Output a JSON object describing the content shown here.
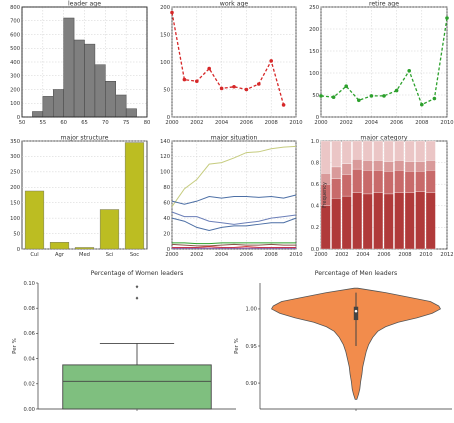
{
  "chart_data": [
    {
      "id": "leader-age",
      "type": "bar",
      "title": "leader age",
      "x_ticks": [
        "50",
        "55",
        "60",
        "65",
        "70",
        "75",
        "80"
      ],
      "y_ticks": [
        "0",
        "100",
        "200",
        "300",
        "400",
        "500",
        "600",
        "700",
        "800"
      ],
      "xlim": [
        50,
        80
      ],
      "ylim": [
        0,
        800
      ],
      "grid": true,
      "bins": [
        [
          52.5,
          55
        ],
        [
          55,
          57.5
        ],
        [
          57.5,
          60
        ],
        [
          60,
          62.5
        ],
        [
          62.5,
          65
        ],
        [
          65,
          67.5
        ],
        [
          67.5,
          70
        ],
        [
          70,
          72.5
        ],
        [
          72.5,
          75
        ],
        [
          75,
          77.5
        ]
      ],
      "values": [
        40,
        150,
        200,
        720,
        560,
        530,
        380,
        260,
        160,
        60
      ],
      "color": "#7f7f7f"
    },
    {
      "id": "work-age",
      "type": "line",
      "title": "work age",
      "x_ticks": [
        "2000",
        "2002",
        "2004",
        "2006",
        "2008",
        "2010"
      ],
      "y_ticks": [
        "0",
        "50",
        "100",
        "150",
        "200"
      ],
      "xlim": [
        2000,
        2010
      ],
      "ylim": [
        0,
        200
      ],
      "grid": true,
      "x": [
        2000,
        2001,
        2002,
        2003,
        2004,
        2005,
        2006,
        2007,
        2008,
        2009
      ],
      "values": [
        190,
        68,
        65,
        88,
        52,
        55,
        50,
        60,
        102,
        22
      ],
      "color": "#d62728"
    },
    {
      "id": "retire-age",
      "type": "line",
      "title": "retire age",
      "x_ticks": [
        "2000",
        "2002",
        "2004",
        "2006",
        "2008",
        "2010"
      ],
      "y_ticks": [
        "0",
        "50",
        "100",
        "150",
        "200",
        "250"
      ],
      "xlim": [
        2000,
        2010
      ],
      "ylim": [
        0,
        250
      ],
      "grid": true,
      "x": [
        2000,
        2001,
        2002,
        2003,
        2004,
        2005,
        2006,
        2007,
        2008,
        2009,
        2010
      ],
      "values": [
        48,
        45,
        70,
        38,
        48,
        48,
        60,
        105,
        28,
        42,
        225
      ],
      "color": "#2ca02c"
    },
    {
      "id": "major-structure",
      "type": "bar",
      "title": "major structure",
      "categories": [
        "Cul",
        "Agr",
        "Med",
        "Sci",
        "Soc"
      ],
      "y_ticks": [
        "0",
        "50",
        "100",
        "150",
        "200",
        "250",
        "300",
        "350"
      ],
      "ylim": [
        0,
        350
      ],
      "grid": true,
      "values": [
        188,
        22,
        5,
        128,
        345
      ],
      "color": "#bcbd22"
    },
    {
      "id": "major-situation",
      "type": "line",
      "title": "major situation",
      "x_ticks": [
        "2000",
        "2002",
        "2004",
        "2006",
        "2008",
        "2010"
      ],
      "y_ticks": [
        "0",
        "20",
        "40",
        "60",
        "80",
        "100",
        "120",
        "140"
      ],
      "xlim": [
        2000,
        2010
      ],
      "ylim": [
        0,
        140
      ],
      "grid": true,
      "x": [
        2000,
        2001,
        2002,
        2003,
        2004,
        2005,
        2006,
        2007,
        2008,
        2009,
        2010
      ],
      "series": [
        {
          "color": "#c6cc7f",
          "values": [
            55,
            78,
            90,
            110,
            112,
            118,
            125,
            126,
            130,
            132,
            133
          ]
        },
        {
          "color": "#4c6fa5",
          "values": [
            62,
            58,
            62,
            68,
            66,
            68,
            68,
            67,
            68,
            66,
            70
          ]
        },
        {
          "color": "#6b7fb8",
          "values": [
            48,
            42,
            42,
            36,
            34,
            32,
            34,
            36,
            40,
            42,
            44
          ]
        },
        {
          "color": "#4c6fa5",
          "values": [
            40,
            36,
            28,
            24,
            28,
            30,
            30,
            32,
            34,
            34,
            40
          ]
        },
        {
          "color": "#8c564b",
          "values": [
            6,
            5,
            4,
            4,
            5,
            6,
            5,
            5,
            6,
            5,
            5
          ]
        },
        {
          "color": "#2ca02c",
          "values": [
            8,
            8,
            7,
            7,
            8,
            8,
            8,
            8,
            8,
            8,
            8
          ]
        },
        {
          "color": "#d62728",
          "values": [
            2,
            2,
            2,
            3,
            2,
            2,
            3,
            2,
            2,
            2,
            2
          ]
        },
        {
          "color": "#9467bd",
          "values": [
            1,
            1,
            1,
            1,
            1,
            1,
            1,
            1,
            1,
            1,
            1
          ]
        }
      ]
    },
    {
      "id": "major-category",
      "type": "bar",
      "title": "major category",
      "ylabel": "Frequency",
      "x_ticks": [
        "2000",
        "2002",
        "2004",
        "2006",
        "2008",
        "2010",
        "2012"
      ],
      "y_ticks": [
        "0.0",
        "0.2",
        "0.4",
        "0.6",
        "0.8",
        "1.0"
      ],
      "xlim": [
        2000,
        2012
      ],
      "ylim": [
        0,
        1
      ],
      "grid": true,
      "x": [
        2000,
        2001,
        2002,
        2003,
        2004,
        2005,
        2006,
        2007,
        2008,
        2009,
        2010
      ],
      "layers": [
        {
          "color": "#b03a3a",
          "values": [
            0.4,
            0.47,
            0.49,
            0.52,
            0.51,
            0.52,
            0.51,
            0.52,
            0.52,
            0.53,
            0.52
          ]
        },
        {
          "color": "#c86a6a",
          "values": [
            0.2,
            0.18,
            0.2,
            0.22,
            0.22,
            0.21,
            0.21,
            0.21,
            0.2,
            0.19,
            0.21
          ]
        },
        {
          "color": "#d99a9a",
          "values": [
            0.1,
            0.11,
            0.1,
            0.09,
            0.09,
            0.09,
            0.09,
            0.09,
            0.09,
            0.09,
            0.09
          ]
        },
        {
          "color": "#ebc6c6",
          "values": [
            0.3,
            0.24,
            0.21,
            0.17,
            0.18,
            0.18,
            0.19,
            0.18,
            0.19,
            0.19,
            0.18
          ]
        }
      ]
    },
    {
      "id": "women-leaders",
      "type": "box",
      "title": "Percentage of Women leaders",
      "ylabel": "Per %",
      "y_ticks": [
        "0.00",
        "0.02",
        "0.04",
        "0.06",
        "0.08",
        "0.10"
      ],
      "ylim": [
        0,
        0.1
      ],
      "q1": 0.0,
      "median": 0.022,
      "q3": 0.035,
      "whisker_low": 0.0,
      "whisker_high": 0.052,
      "outliers": [
        0.088,
        0.097
      ],
      "color": "#7fbf7f"
    },
    {
      "id": "men-leaders",
      "type": "violin",
      "title": "Percentage of Men leaders",
      "ylabel": "Per %",
      "y_ticks": [
        "0.90",
        "0.95",
        "1.00"
      ],
      "ylim": [
        0.865,
        1.035
      ],
      "profile": [
        [
          1.028,
          0.02
        ],
        [
          1.022,
          0.35
        ],
        [
          1.016,
          0.62
        ],
        [
          1.01,
          0.88
        ],
        [
          1.004,
          0.98
        ],
        [
          1.0,
          1.0
        ],
        [
          0.994,
          0.9
        ],
        [
          0.988,
          0.72
        ],
        [
          0.982,
          0.5
        ],
        [
          0.976,
          0.35
        ],
        [
          0.97,
          0.26
        ],
        [
          0.962,
          0.2
        ],
        [
          0.952,
          0.15
        ],
        [
          0.942,
          0.12
        ],
        [
          0.932,
          0.1
        ],
        [
          0.922,
          0.08
        ],
        [
          0.912,
          0.07
        ],
        [
          0.902,
          0.055
        ],
        [
          0.892,
          0.045
        ],
        [
          0.885,
          0.03
        ],
        [
          0.878,
          0.01
        ]
      ],
      "q1": 0.985,
      "median": 0.997,
      "q3": 1.003,
      "whisker_low": 0.95,
      "whisker_high": 1.022,
      "color": "#f28c4c"
    }
  ]
}
